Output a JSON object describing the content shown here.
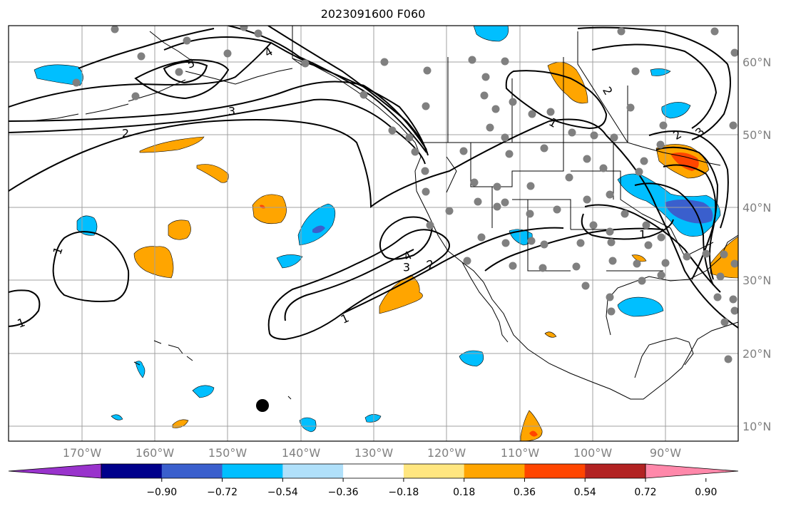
{
  "title": "2023091600 F060",
  "colors": {
    "background": "#ffffff",
    "gridline": "#a0a0a0",
    "coastline": "#000000",
    "contour": "#000000",
    "station_dot": "#808080",
    "marker": "#000000",
    "tick_label": "#808080"
  },
  "longitude_labels": [
    "170°W",
    "160°W",
    "150°W",
    "140°W",
    "130°W",
    "120°W",
    "110°W",
    "100°W",
    "90°W"
  ],
  "latitude_labels": [
    "60°N",
    "50°N",
    "40°N",
    "30°N",
    "20°N",
    "10°N"
  ],
  "colorbar": {
    "extend": "both",
    "boundaries": [
      -0.9,
      -0.72,
      -0.54,
      -0.36,
      -0.18,
      0.18,
      0.36,
      0.54,
      0.72,
      0.9
    ],
    "tick_labels": [
      "−0.90",
      "−0.72",
      "−0.54",
      "−0.36",
      "−0.18",
      "0.18",
      "0.36",
      "0.54",
      "0.72",
      "0.90"
    ],
    "colors": [
      "#9933cc",
      "#00008b",
      "#3a5fcd",
      "#00bfff",
      "#b0e0fa",
      "#ffffff",
      "#ffe680",
      "#ffa500",
      "#ff4500",
      "#b22222",
      "#ff88aa"
    ]
  },
  "contour_labels": [
    "1",
    "1",
    "1",
    "1",
    "1",
    "2",
    "2",
    "2",
    "2",
    "3",
    "3",
    "3",
    "4",
    "4",
    "5"
  ]
}
